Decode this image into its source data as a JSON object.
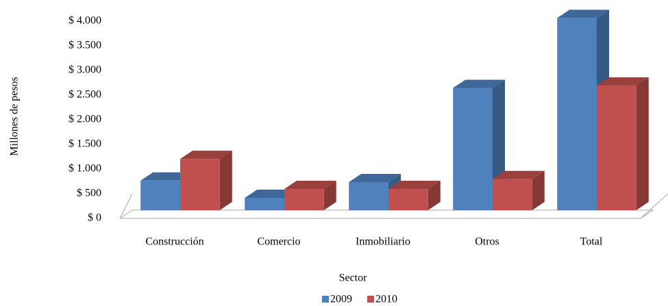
{
  "chart_data": {
    "type": "bar3d",
    "x_label": "Sector",
    "y_label": "Millones de pesos",
    "categories": [
      "Construcción",
      "Comercio",
      "Inmobiliario",
      "Otros",
      "Total"
    ],
    "series": [
      {
        "name": "2009",
        "color": "#4f81bd",
        "values": [
          600,
          250,
          570,
          2480,
          3900
        ]
      },
      {
        "name": "2010",
        "color": "#c0504d",
        "values": [
          1040,
          430,
          430,
          630,
          2530
        ]
      }
    ],
    "ylim": [
      0,
      4000
    ],
    "yticks": [
      {
        "value": 0,
        "label": "$ 0"
      },
      {
        "value": 500,
        "label": "$ 500"
      },
      {
        "value": 1000,
        "label": "$ 1.000"
      },
      {
        "value": 1500,
        "label": "$ 1.500"
      },
      {
        "value": 2000,
        "label": "$ 2.000"
      },
      {
        "value": 2500,
        "label": "$ 2.500"
      },
      {
        "value": 3000,
        "label": "$ 3.000"
      },
      {
        "value": 3500,
        "label": "$ 3.500"
      },
      {
        "value": 4000,
        "label": "$ 4.000"
      }
    ],
    "legend": "bottom"
  }
}
